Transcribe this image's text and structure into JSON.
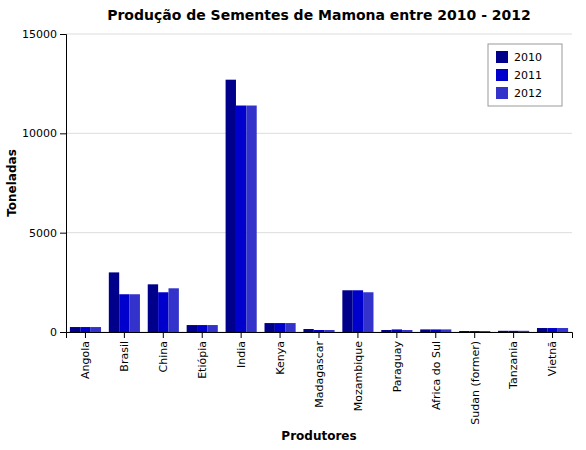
{
  "chart_data": {
    "type": "bar",
    "title": "Produção de Sementes de Mamona entre 2010 - 2012",
    "xlabel": "Produtores",
    "ylabel": "Toneladas",
    "categories": [
      "Angola",
      "Brasil",
      "China",
      "Etiópia",
      "India",
      "Kenya",
      "Madagascar",
      "Mozambique",
      "Paraguay",
      "Africa do Sul",
      "Sudan (former)",
      "Tanzania",
      "Vietnã"
    ],
    "series": [
      {
        "name": "2010",
        "color": "#00008B",
        "values": [
          250,
          3000,
          2400,
          350,
          12700,
          450,
          150,
          2100,
          100,
          130,
          50,
          60,
          200
        ]
      },
      {
        "name": "2011",
        "color": "#0000CD",
        "values": [
          250,
          1900,
          2000,
          350,
          11400,
          450,
          100,
          2100,
          130,
          130,
          50,
          60,
          200
        ]
      },
      {
        "name": "2012",
        "color": "#3333CC",
        "values": [
          250,
          1900,
          2200,
          350,
          11400,
          450,
          100,
          2000,
          100,
          130,
          50,
          60,
          200
        ]
      }
    ],
    "ylim": [
      0,
      15000
    ],
    "yticks": [
      0,
      5000,
      10000,
      15000
    ],
    "grid": true,
    "legend": "upper right"
  }
}
